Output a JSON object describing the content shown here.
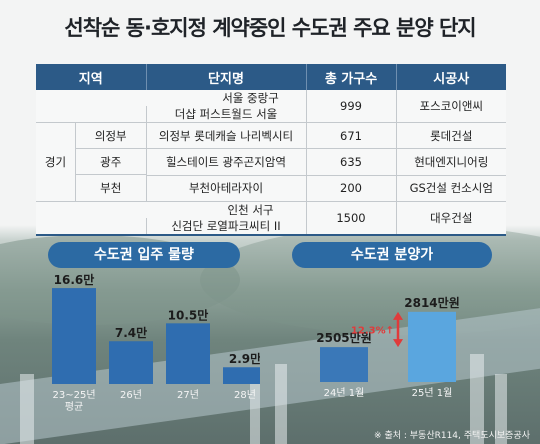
{
  "title": "선착순 동·호지정 계약중인 수도권 주요 분양 단지",
  "table": {
    "headers": [
      "지역",
      "단지명",
      "총 가구수",
      "시공사"
    ],
    "rows": [
      {
        "region": "서울 중랑구",
        "sub": "",
        "name": "더샵 퍼스트월드 서울",
        "units": "999",
        "builder": "포스코이앤씨"
      },
      {
        "region": "경기",
        "sub": "의정부",
        "name": "의정부 롯데캐슬 나리벡시티",
        "units": "671",
        "builder": "롯데건설"
      },
      {
        "region": "경기",
        "sub": "광주",
        "name": "힐스테이트 광주곤지암역",
        "units": "635",
        "builder": "현대엔지니어링"
      },
      {
        "region": "경기",
        "sub": "부천",
        "name": "부천아테라자이",
        "units": "200",
        "builder": "GS건설 컨소시엄"
      },
      {
        "region": "인천 서구",
        "sub": "",
        "name": "신검단 로열파크씨티 II",
        "units": "1500",
        "builder": "대우건설"
      }
    ],
    "group_label": "경기"
  },
  "chart_data": [
    {
      "type": "bar",
      "title": "수도권 입주 물량",
      "categories": [
        "23~25년 평균",
        "26년",
        "27년",
        "28년"
      ],
      "category_lines": [
        [
          "23~25년",
          "평균"
        ],
        [
          "26년"
        ],
        [
          "27년"
        ],
        [
          "28년"
        ]
      ],
      "values": [
        16.6,
        7.4,
        10.5,
        2.9
      ],
      "data_labels": [
        "16.6만",
        "7.4만",
        "10.5만",
        "2.9만"
      ],
      "ylim": [
        0,
        18
      ],
      "color": "#2f6db0"
    },
    {
      "type": "bar",
      "title": "수도권 분양가",
      "categories": [
        "24년 1월",
        "25년 1월"
      ],
      "values": [
        2505,
        2814
      ],
      "data_labels": [
        "2505만원",
        "2814만원"
      ],
      "annotation": "12.3%↑",
      "ylim": [
        2200,
        2900
      ],
      "colors": [
        "#3a78b8",
        "#5aa6df"
      ],
      "arrow_color": "#e03b3b"
    }
  ],
  "source": "※ 출처 : 부동산R114, 주택도시보증공사"
}
